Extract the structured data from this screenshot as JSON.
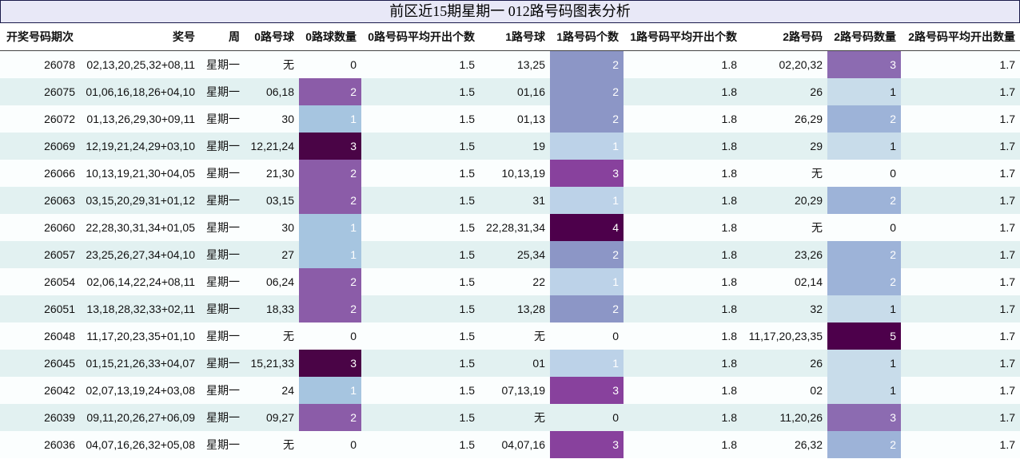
{
  "title": "前区近15期星期一 012路号码图表分析",
  "headers": [
    "开奖号码期次",
    "奖号",
    "周",
    "0路号球",
    "0路球数量",
    "0路号码平均开出个数",
    "1路号球",
    "1路号码个数",
    "1路号码平均开出个数",
    "2路号码",
    "2路号码数量",
    "2路号码平均开出数量"
  ],
  "colors": {
    "0": "",
    "1": "#a6c5e0",
    "2": "#8b5ca8",
    "3": "#4a0446"
  },
  "colors_c1": {
    "0": "",
    "1": "#bcd2e8",
    "2": "#8c96c6",
    "3": "#88419d",
    "4": "#4d004b"
  },
  "colors_c2": {
    "0": "",
    "1": "#c8dcea",
    "2": "#9db3d8",
    "3": "#8c6bb1",
    "5": "#4d004b"
  },
  "rows": [
    {
      "period": "26078",
      "numbers": "02,13,20,25,32+08,11",
      "weekday": "星期一",
      "r0": "无",
      "c0": "0",
      "a0": "1.5",
      "r1": "13,25",
      "c1": "2",
      "a1": "1.8",
      "r2": "02,20,32",
      "c2": "3",
      "a2": "1.7"
    },
    {
      "period": "26075",
      "numbers": "01,06,16,18,26+04,10",
      "weekday": "星期一",
      "r0": "06,18",
      "c0": "2",
      "a0": "1.5",
      "r1": "01,16",
      "c1": "2",
      "a1": "1.8",
      "r2": "26",
      "c2": "1",
      "a2": "1.7"
    },
    {
      "period": "26072",
      "numbers": "01,13,26,29,30+09,11",
      "weekday": "星期一",
      "r0": "30",
      "c0": "1",
      "a0": "1.5",
      "r1": "01,13",
      "c1": "2",
      "a1": "1.8",
      "r2": "26,29",
      "c2": "2",
      "a2": "1.7"
    },
    {
      "period": "26069",
      "numbers": "12,19,21,24,29+03,10",
      "weekday": "星期一",
      "r0": "12,21,24",
      "c0": "3",
      "a0": "1.5",
      "r1": "19",
      "c1": "1",
      "a1": "1.8",
      "r2": "29",
      "c2": "1",
      "a2": "1.7"
    },
    {
      "period": "26066",
      "numbers": "10,13,19,21,30+04,05",
      "weekday": "星期一",
      "r0": "21,30",
      "c0": "2",
      "a0": "1.5",
      "r1": "10,13,19",
      "c1": "3",
      "a1": "1.8",
      "r2": "无",
      "c2": "0",
      "a2": "1.7"
    },
    {
      "period": "26063",
      "numbers": "03,15,20,29,31+01,12",
      "weekday": "星期一",
      "r0": "03,15",
      "c0": "2",
      "a0": "1.5",
      "r1": "31",
      "c1": "1",
      "a1": "1.8",
      "r2": "20,29",
      "c2": "2",
      "a2": "1.7"
    },
    {
      "period": "26060",
      "numbers": "22,28,30,31,34+01,05",
      "weekday": "星期一",
      "r0": "30",
      "c0": "1",
      "a0": "1.5",
      "r1": "22,28,31,34",
      "c1": "4",
      "a1": "1.8",
      "r2": "无",
      "c2": "0",
      "a2": "1.7"
    },
    {
      "period": "26057",
      "numbers": "23,25,26,27,34+04,10",
      "weekday": "星期一",
      "r0": "27",
      "c0": "1",
      "a0": "1.5",
      "r1": "25,34",
      "c1": "2",
      "a1": "1.8",
      "r2": "23,26",
      "c2": "2",
      "a2": "1.7"
    },
    {
      "period": "26054",
      "numbers": "02,06,14,22,24+08,11",
      "weekday": "星期一",
      "r0": "06,24",
      "c0": "2",
      "a0": "1.5",
      "r1": "22",
      "c1": "1",
      "a1": "1.8",
      "r2": "02,14",
      "c2": "2",
      "a2": "1.7"
    },
    {
      "period": "26051",
      "numbers": "13,18,28,32,33+02,11",
      "weekday": "星期一",
      "r0": "18,33",
      "c0": "2",
      "a0": "1.5",
      "r1": "13,28",
      "c1": "2",
      "a1": "1.8",
      "r2": "32",
      "c2": "1",
      "a2": "1.7"
    },
    {
      "period": "26048",
      "numbers": "11,17,20,23,35+01,10",
      "weekday": "星期一",
      "r0": "无",
      "c0": "0",
      "a0": "1.5",
      "r1": "无",
      "c1": "0",
      "a1": "1.8",
      "r2": "11,17,20,23,35",
      "c2": "5",
      "a2": "1.7"
    },
    {
      "period": "26045",
      "numbers": "01,15,21,26,33+04,07",
      "weekday": "星期一",
      "r0": "15,21,33",
      "c0": "3",
      "a0": "1.5",
      "r1": "01",
      "c1": "1",
      "a1": "1.8",
      "r2": "26",
      "c2": "1",
      "a2": "1.7"
    },
    {
      "period": "26042",
      "numbers": "02,07,13,19,24+03,08",
      "weekday": "星期一",
      "r0": "24",
      "c0": "1",
      "a0": "1.5",
      "r1": "07,13,19",
      "c1": "3",
      "a1": "1.8",
      "r2": "02",
      "c2": "1",
      "a2": "1.7"
    },
    {
      "period": "26039",
      "numbers": "09,11,20,26,27+06,09",
      "weekday": "星期一",
      "r0": "09,27",
      "c0": "2",
      "a0": "1.5",
      "r1": "无",
      "c1": "0",
      "a1": "1.8",
      "r2": "11,20,26",
      "c2": "3",
      "a2": "1.7"
    },
    {
      "period": "26036",
      "numbers": "04,07,16,26,32+05,08",
      "weekday": "星期一",
      "r0": "无",
      "c0": "0",
      "a0": "1.5",
      "r1": "04,07,16",
      "c1": "3",
      "a1": "1.8",
      "r2": "26,32",
      "c2": "2",
      "a2": "1.7"
    }
  ]
}
